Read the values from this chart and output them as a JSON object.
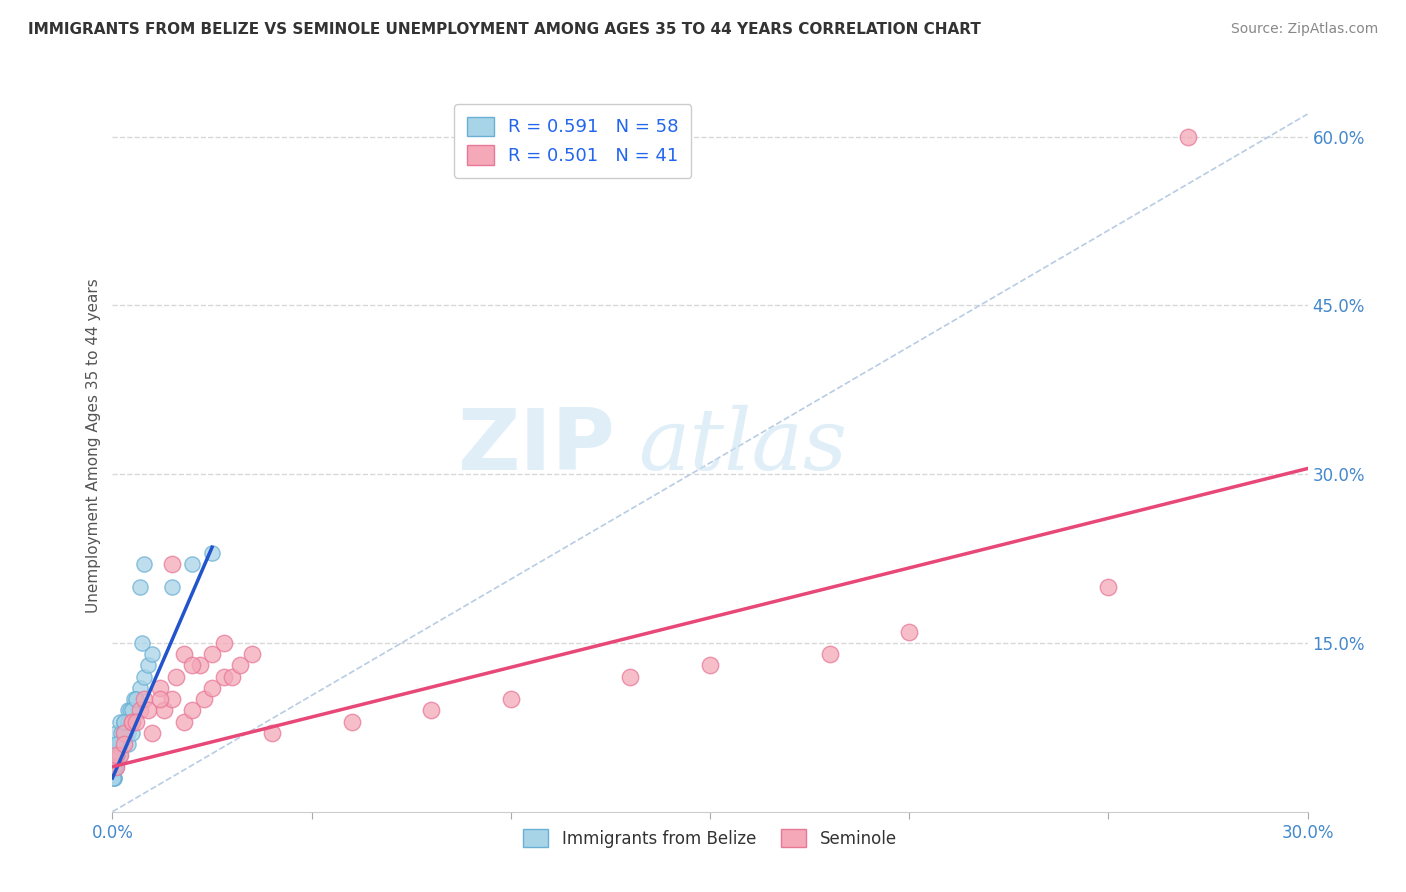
{
  "title": "IMMIGRANTS FROM BELIZE VS SEMINOLE UNEMPLOYMENT AMONG AGES 35 TO 44 YEARS CORRELATION CHART",
  "source": "Source: ZipAtlas.com",
  "ylabel": "Unemployment Among Ages 35 to 44 years",
  "xlim": [
    0.0,
    0.3
  ],
  "ylim": [
    0.0,
    0.65
  ],
  "xticks": [
    0.0,
    0.05,
    0.1,
    0.15,
    0.2,
    0.25,
    0.3
  ],
  "yticks_right": [
    0.15,
    0.3,
    0.45,
    0.6
  ],
  "ytick_right_labels": [
    "15.0%",
    "30.0%",
    "45.0%",
    "60.0%"
  ],
  "legend_r1": "R = 0.591",
  "legend_n1": "N = 58",
  "legend_r2": "R = 0.501",
  "legend_n2": "N = 41",
  "blue_color": "#a8d4e8",
  "pink_color": "#f4a8b8",
  "blue_edge_color": "#6aafd4",
  "pink_edge_color": "#e87898",
  "blue_line_color": "#2255cc",
  "pink_line_color": "#e84878",
  "diag_color": "#b8cce4",
  "grid_color": "#d8d8d8",
  "watermark_color": "#cce4f4",
  "background_color": "#ffffff",
  "title_color": "#333333",
  "source_color": "#888888",
  "axis_label_color": "#555555",
  "tick_color": "#4488cc",
  "legend_text_color": "#333333",
  "legend_value_color": "#2266ee",
  "belize_x": [
    0.0005,
    0.001,
    0.0015,
    0.002,
    0.0025,
    0.003,
    0.0035,
    0.004,
    0.0045,
    0.005,
    0.001,
    0.002,
    0.003,
    0.004,
    0.005,
    0.006,
    0.007,
    0.008,
    0.009,
    0.01,
    0.0005,
    0.001,
    0.002,
    0.003,
    0.004,
    0.005,
    0.001,
    0.002,
    0.003,
    0.004,
    0.0008,
    0.0012,
    0.0018,
    0.0022,
    0.003,
    0.0038,
    0.0045,
    0.0055,
    0.007,
    0.008,
    0.0003,
    0.0006,
    0.001,
    0.0015,
    0.002,
    0.003,
    0.004,
    0.005,
    0.006,
    0.0075,
    0.0002,
    0.0004,
    0.0007,
    0.001,
    0.015,
    0.02,
    0.025,
    0.003
  ],
  "belize_y": [
    0.03,
    0.04,
    0.05,
    0.05,
    0.06,
    0.06,
    0.07,
    0.07,
    0.08,
    0.09,
    0.05,
    0.06,
    0.07,
    0.08,
    0.09,
    0.1,
    0.11,
    0.12,
    0.13,
    0.14,
    0.04,
    0.05,
    0.05,
    0.06,
    0.06,
    0.07,
    0.07,
    0.08,
    0.08,
    0.09,
    0.04,
    0.05,
    0.06,
    0.07,
    0.07,
    0.08,
    0.09,
    0.1,
    0.2,
    0.22,
    0.03,
    0.04,
    0.05,
    0.06,
    0.06,
    0.07,
    0.08,
    0.09,
    0.1,
    0.15,
    0.03,
    0.04,
    0.05,
    0.06,
    0.2,
    0.22,
    0.23,
    0.08
  ],
  "seminole_x": [
    0.001,
    0.002,
    0.003,
    0.005,
    0.007,
    0.01,
    0.013,
    0.015,
    0.018,
    0.02,
    0.023,
    0.025,
    0.028,
    0.015,
    0.018,
    0.022,
    0.025,
    0.028,
    0.03,
    0.032,
    0.035,
    0.005,
    0.008,
    0.012,
    0.016,
    0.02,
    0.001,
    0.003,
    0.006,
    0.009,
    0.012,
    0.04,
    0.06,
    0.08,
    0.1,
    0.13,
    0.15,
    0.18,
    0.2,
    0.25,
    0.27
  ],
  "seminole_y": [
    0.04,
    0.05,
    0.07,
    0.08,
    0.09,
    0.07,
    0.09,
    0.1,
    0.08,
    0.09,
    0.1,
    0.11,
    0.12,
    0.22,
    0.14,
    0.13,
    0.14,
    0.15,
    0.12,
    0.13,
    0.14,
    0.08,
    0.1,
    0.11,
    0.12,
    0.13,
    0.05,
    0.06,
    0.08,
    0.09,
    0.1,
    0.07,
    0.08,
    0.09,
    0.1,
    0.12,
    0.13,
    0.14,
    0.16,
    0.2,
    0.6
  ],
  "belize_trend": [
    0.0,
    0.025,
    0.03,
    0.235
  ],
  "seminole_trend": [
    0.0,
    0.3,
    0.04,
    0.305
  ],
  "diag_line": [
    0.0,
    0.3,
    0.0,
    0.62
  ]
}
